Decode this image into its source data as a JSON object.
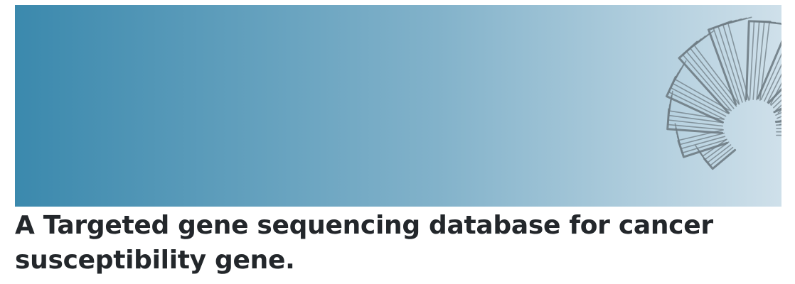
{
  "banner": {
    "icon": "gene-sequence-fan-graphic",
    "colors": {
      "gradient_start": "#3b89ad",
      "gradient_end": "#cfe0ea",
      "graphic_stroke": "#6f7c84"
    }
  },
  "heading": {
    "text": "A Targeted gene sequencing database for cancer susceptibility gene."
  }
}
